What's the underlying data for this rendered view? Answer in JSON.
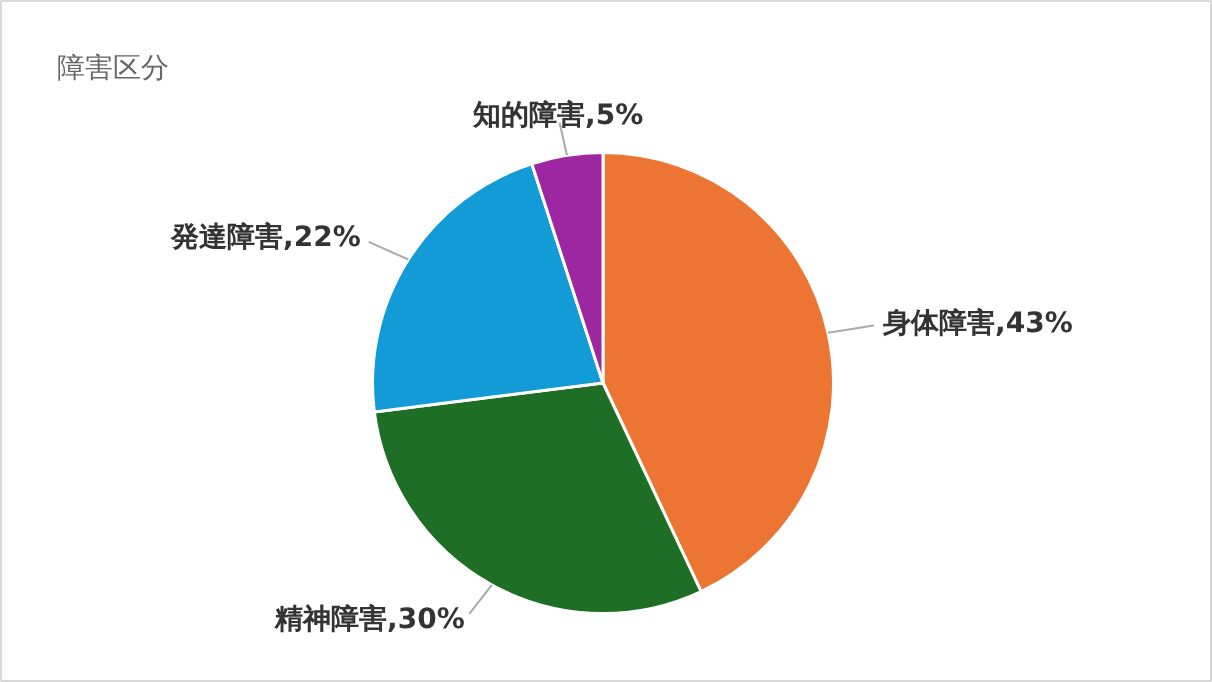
{
  "chart_data": {
    "type": "pie",
    "title": "障害区分",
    "categories": [
      "身体障害",
      "精神障害",
      "発達障害",
      "知的障害"
    ],
    "values": [
      43,
      30,
      22,
      5
    ],
    "value_labels": [
      "43%",
      "30%",
      "22%",
      "5%"
    ],
    "colors": [
      "#ec7533",
      "#1e6f25",
      "#129bd6",
      "#9c27a0"
    ]
  }
}
